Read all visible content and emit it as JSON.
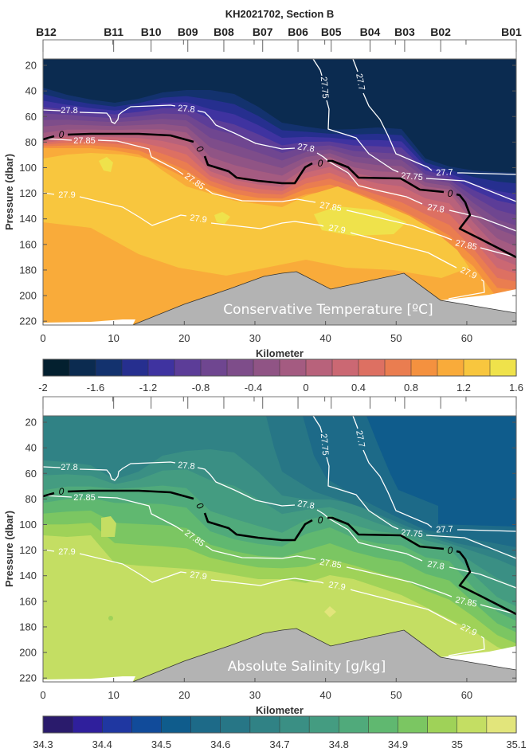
{
  "figure": {
    "title": "KH2021702, Section B"
  },
  "stations": [
    {
      "name": "B12",
      "km": 0
    },
    {
      "name": "B11",
      "km": 10
    },
    {
      "name": "B10",
      "km": 15.3
    },
    {
      "name": "B09",
      "km": 20.5
    },
    {
      "name": "B08",
      "km": 25.6
    },
    {
      "name": "B07",
      "km": 31.1
    },
    {
      "name": "B06",
      "km": 36.1
    },
    {
      "name": "B05",
      "km": 40.8
    },
    {
      "name": "B04",
      "km": 46.3
    },
    {
      "name": "B03",
      "km": 51.2
    },
    {
      "name": "B02",
      "km": 56.3
    },
    {
      "name": "B01",
      "km": 67
    }
  ],
  "chart_data": [
    {
      "type": "contour",
      "panel_label": "Conservative Temperature [ºC]",
      "xlabel": "Kilometer",
      "ylabel": "Pressure (dbar)",
      "xlim": [
        0,
        67
      ],
      "ylim": [
        223,
        15
      ],
      "y_reversed": true,
      "xticks": [
        "0",
        "10",
        "20",
        "30",
        "40",
        "50",
        "60"
      ],
      "yticks": [
        "20",
        "40",
        "60",
        "80",
        "100",
        "120",
        "140",
        "160",
        "180",
        "200",
        "220"
      ],
      "density_levels": [
        "27.7",
        "27.75",
        "27.8",
        "27.85",
        "27.9"
      ],
      "zero_contour_label": "0",
      "colorbar": {
        "range": [
          -2,
          1.6
        ],
        "step": 0.2,
        "tick_labels": [
          "-2",
          "-1.6",
          "-1.2",
          "-0.8",
          "-0.4",
          "0",
          "0.4",
          "0.8",
          "1.2",
          "1.6"
        ],
        "colors": [
          "#03202f",
          "#0b2b50",
          "#13326e",
          "#262f8f",
          "#3f33a0",
          "#5c3d98",
          "#6f4690",
          "#7e4d8a",
          "#905485",
          "#a45b81",
          "#b8627b",
          "#cb6873",
          "#dd7062",
          "#ea7d50",
          "#f4913f",
          "#f9ab3a",
          "#f8c63e",
          "#efe24b"
        ]
      },
      "bathymetry_color": "#b3b3b3"
    },
    {
      "type": "contour",
      "panel_label": "Absolute Salinity [g/kg]",
      "xlabel": "Kilometer",
      "ylabel": "Pressure (dbar)",
      "xlim": [
        0,
        67
      ],
      "ylim": [
        223,
        15
      ],
      "y_reversed": true,
      "xticks": [
        "0",
        "10",
        "20",
        "30",
        "40",
        "50",
        "60"
      ],
      "yticks": [
        "20",
        "40",
        "60",
        "80",
        "100",
        "120",
        "140",
        "160",
        "180",
        "200",
        "220"
      ],
      "density_levels": [
        "27.7",
        "27.75",
        "27.8",
        "27.85",
        "27.9"
      ],
      "zero_contour_label": "0",
      "colorbar": {
        "range": [
          34.3,
          35.1
        ],
        "step": 0.05,
        "tick_labels": [
          "34.3",
          "34.4",
          "34.5",
          "34.6",
          "34.7",
          "34.8",
          "34.9",
          "35",
          "35.1"
        ],
        "colors": [
          "#2a1b6c",
          "#2f1f9c",
          "#1f37a1",
          "#114b9a",
          "#0f5c8c",
          "#1d6a88",
          "#277686",
          "#308285",
          "#3a8f84",
          "#449c81",
          "#50aa7b",
          "#60b870",
          "#7bc662",
          "#9fd258",
          "#c4de63",
          "#e2e57b"
        ]
      },
      "bathymetry_color": "#b3b3b3"
    }
  ]
}
